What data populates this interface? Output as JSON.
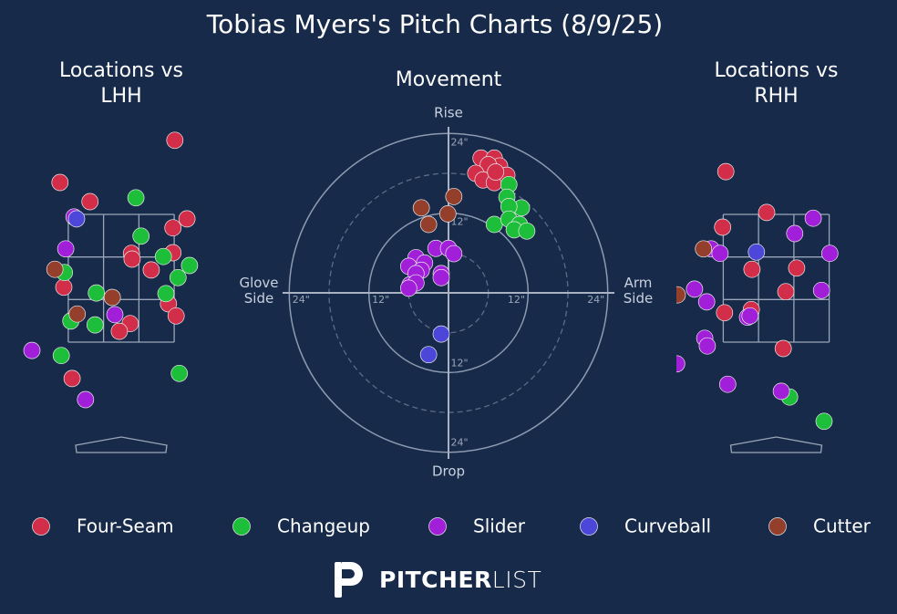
{
  "title": "Tobias Myers's Pitch Charts (8/9/25)",
  "logo": {
    "bold": "PITCHER",
    "light": "LIST"
  },
  "chart_data": [
    {
      "type": "scatter",
      "title": "Locations vs LHH",
      "xlim": [
        -1.55,
        1.55
      ],
      "ylim": [
        -0.4,
        4.8
      ],
      "series": [
        {
          "name": "Four-Seam",
          "color": "#d22d49",
          "x": [
            0.84,
            -0.96,
            -0.49,
            0.81,
            1.03,
            0.16,
            0.17,
            0.81,
            0.47,
            -0.9,
            0.74,
            0.86,
            0.14,
            -0.03,
            -0.77
          ],
          "values": [
            4.66,
            4.0,
            3.7,
            3.29,
            3.43,
            2.89,
            2.8,
            2.9,
            2.63,
            2.36,
            2.1,
            1.91,
            1.79,
            1.67,
            0.93
          ]
        },
        {
          "name": "Changeup",
          "color": "#1dbe3a",
          "x": [
            0.23,
            0.31,
            0.66,
            1.07,
            0.89,
            -0.89,
            -0.39,
            0.7,
            -0.79,
            -0.41,
            -0.94,
            0.91
          ],
          "values": [
            3.76,
            3.16,
            2.84,
            2.7,
            2.51,
            2.59,
            2.27,
            2.26,
            1.83,
            1.77,
            1.29,
            1.01
          ]
        },
        {
          "name": "Slider",
          "color": "#a21fd9",
          "x": [
            -0.74,
            -0.87,
            -0.1,
            -1.4,
            -0.56
          ],
          "values": [
            3.46,
            2.96,
            1.93,
            1.37,
            0.6
          ]
        },
        {
          "name": "Curveball",
          "color": "#4c47d9",
          "x": [
            -0.7
          ],
          "values": [
            3.43
          ]
        },
        {
          "name": "Cutter",
          "color": "#933f2c",
          "x": [
            -1.04,
            -0.14,
            -0.69
          ],
          "values": [
            2.64,
            2.2,
            1.94
          ]
        }
      ]
    },
    {
      "type": "polar",
      "title": "Movement",
      "rlim": [
        0,
        25
      ],
      "rticks": [
        {
          "value": 12,
          "label": "12\""
        },
        {
          "value": 24,
          "label": "24\""
        }
      ],
      "rminor": [
        6,
        18
      ],
      "labels": {
        "top": "Rise",
        "bottom": "Drop",
        "left": "Glove Side",
        "right": "Arm Side"
      },
      "series": [
        {
          "name": "Four-Seam",
          "color": "#d22d49",
          "x": [
            4.9,
            6.9,
            7.7,
            6.0,
            4.1,
            5.2,
            6.9,
            8.8,
            7.1
          ],
          "values": [
            20.3,
            20.3,
            19.1,
            19.3,
            18.0,
            17.0,
            16.6,
            17.7,
            18.2
          ]
        },
        {
          "name": "Changeup",
          "color": "#1dbe3a",
          "x": [
            9.1,
            8.8,
            11.0,
            9.1,
            6.9,
            9.1,
            10.7,
            9.9,
            11.8
          ],
          "values": [
            16.3,
            14.4,
            12.8,
            13.0,
            10.3,
            11.1,
            10.3,
            9.5,
            9.3
          ]
        },
        {
          "name": "Slider",
          "color": "#a21fd9",
          "x": [
            -1.9,
            0.0,
            0.8,
            -4.9,
            -3.6,
            -6.0,
            -4.1,
            -4.9,
            -1.1,
            -1.1,
            -5.8,
            -4.9,
            -6.0
          ],
          "values": [
            6.7,
            6.7,
            5.9,
            5.3,
            4.5,
            4.0,
            3.4,
            2.9,
            2.9,
            2.3,
            1.2,
            1.5,
            0.7
          ]
        },
        {
          "name": "Curveball",
          "color": "#4c47d9",
          "x": [
            -1.1,
            -3.0
          ],
          "values": [
            -6.2,
            -9.3
          ]
        },
        {
          "name": "Cutter",
          "color": "#933f2c",
          "x": [
            0.8,
            -4.1,
            -0.1,
            -3.0
          ],
          "values": [
            14.5,
            12.8,
            11.9,
            10.3
          ]
        }
      ]
    },
    {
      "type": "scatter",
      "title": "Locations vs RHH",
      "xlim": [
        -1.55,
        1.55
      ],
      "ylim": [
        -0.4,
        4.8
      ],
      "series": [
        {
          "name": "Four-Seam",
          "color": "#d22d49",
          "x": [
            -0.79,
            -0.15,
            -0.84,
            -0.38,
            0.32,
            0.15,
            -0.39,
            -0.81,
            0.11
          ],
          "values": [
            4.17,
            3.53,
            3.3,
            2.64,
            2.66,
            2.29,
            2.01,
            1.96,
            1.4
          ]
        },
        {
          "name": "Changeup",
          "color": "#1dbe3a",
          "x": [
            0.21,
            0.75
          ],
          "values": [
            0.64,
            0.26
          ]
        },
        {
          "name": "Slider",
          "color": "#a21fd9",
          "x": [
            -1.02,
            -0.88,
            0.58,
            0.29,
            0.84,
            -1.28,
            -1.09,
            0.71,
            -0.45,
            -0.41,
            -1.12,
            -1.08,
            -1.56,
            -0.76,
            0.08
          ],
          "values": [
            2.96,
            2.89,
            3.44,
            3.2,
            2.89,
            2.33,
            2.13,
            2.31,
            1.89,
            1.91,
            1.56,
            1.44,
            1.16,
            0.84,
            0.73
          ]
        },
        {
          "name": "Curveball",
          "color": "#4c47d9",
          "x": [
            -0.31
          ],
          "values": [
            2.91
          ]
        },
        {
          "name": "Cutter",
          "color": "#933f2c",
          "x": [
            -1.14,
            -1.55
          ],
          "values": [
            2.96,
            2.24
          ]
        }
      ]
    }
  ]
}
